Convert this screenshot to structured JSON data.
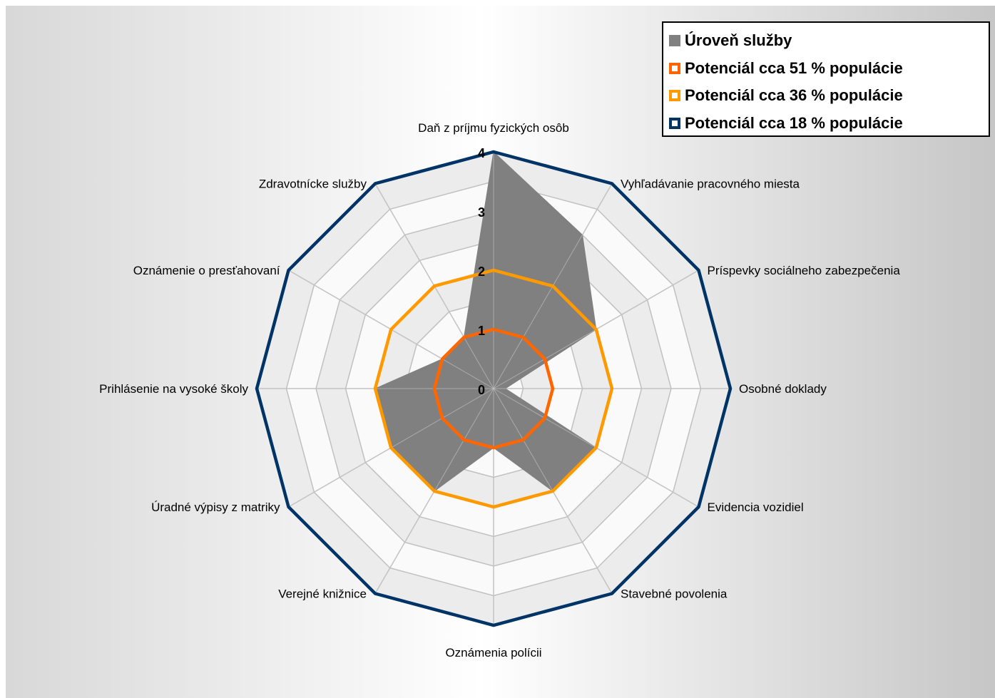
{
  "chart_data": {
    "type": "radar",
    "categories": [
      "Daň z príjmu fyzických osôb",
      "Vyhľadávanie pracovného miesta",
      "Príspevky sociálneho zabezpečenia",
      "Osobné doklady",
      "Evidencia vozidiel",
      "Stavebné povolenia",
      "Oznámenia polícii",
      "Verejné knižnice",
      "Úradné výpisy z matriky",
      "Prihlásenie na vysoké školy",
      "Oznámenie o presťahovaní",
      "Zdravotnícke služby"
    ],
    "ticks": [
      "0",
      "1",
      "2",
      "3",
      "4"
    ],
    "rlim": [
      0,
      4
    ],
    "grid_levels": [
      0,
      0.5,
      1,
      1.5,
      2,
      2.5,
      3,
      3.5,
      4
    ],
    "series": [
      {
        "name": "Úroveň služby",
        "kind": "area",
        "color": "#808080",
        "values": [
          4,
          3,
          2,
          0.2,
          2,
          2,
          1,
          2,
          2,
          2,
          1,
          1
        ]
      },
      {
        "name": "Potenciál cca 51 % populácie",
        "kind": "line",
        "color": "#FF6600",
        "values": [
          1,
          1,
          1,
          1,
          1,
          1,
          1,
          1,
          1,
          1,
          1,
          1
        ]
      },
      {
        "name": "Potenciál cca 36 % populácie",
        "kind": "line",
        "color": "#FF9900",
        "values": [
          2,
          2,
          2,
          2,
          2,
          2,
          2,
          2,
          2,
          2,
          2,
          2
        ]
      },
      {
        "name": "Potenciál cca 18 % populácie",
        "kind": "line",
        "color": "#003366",
        "values": [
          4,
          4,
          4,
          4,
          4,
          4,
          4,
          4,
          4,
          4,
          4,
          4
        ]
      }
    ],
    "legend_position": "top-right",
    "grid": true
  }
}
